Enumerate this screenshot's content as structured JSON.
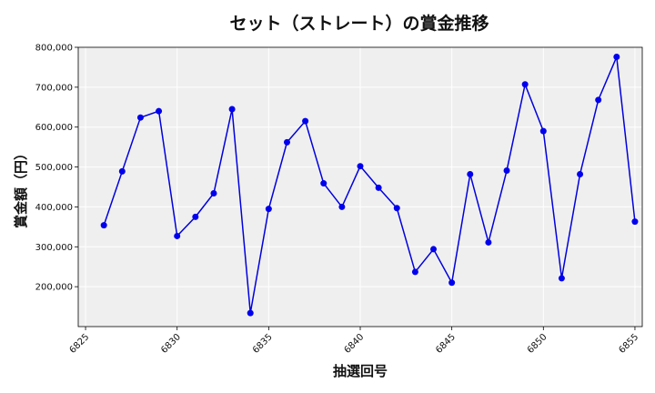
{
  "chart_data": {
    "type": "line",
    "title": "セット（ストレート）の賞金推移",
    "xlabel": "抽選回号",
    "ylabel": "賞金額（円）",
    "xlim": [
      6824.6,
      6855.4
    ],
    "ylim": [
      100000,
      800000
    ],
    "xticks": [
      6825,
      6830,
      6835,
      6840,
      6845,
      6850,
      6855
    ],
    "yticks": [
      200000,
      300000,
      400000,
      500000,
      600000,
      700000,
      800000
    ],
    "ytick_labels": [
      "200,000",
      "300,000",
      "400,000",
      "500,000",
      "600,000",
      "700,000",
      "800,000"
    ],
    "grid": true,
    "colors": {
      "line": "#0000dd",
      "marker": "#0000ee",
      "plot_bg": "#efefef",
      "grid": "#ffffff"
    },
    "series": [
      {
        "x": [
          6826,
          6827,
          6828,
          6829,
          6830,
          6831,
          6832,
          6833,
          6834,
          6835,
          6836,
          6837,
          6838,
          6839,
          6840,
          6841,
          6842,
          6843,
          6844,
          6845,
          6846,
          6847,
          6848,
          6849,
          6850,
          6851,
          6852,
          6853,
          6854,
          6855
        ],
        "y": [
          354000,
          489000,
          624000,
          640000,
          327000,
          375000,
          434000,
          645000,
          134000,
          395000,
          562000,
          615000,
          459000,
          400000,
          502000,
          448000,
          397000,
          237000,
          294000,
          210000,
          482000,
          311000,
          491000,
          707000,
          590000,
          221000,
          482000,
          668000,
          776000,
          363000
        ]
      }
    ]
  }
}
